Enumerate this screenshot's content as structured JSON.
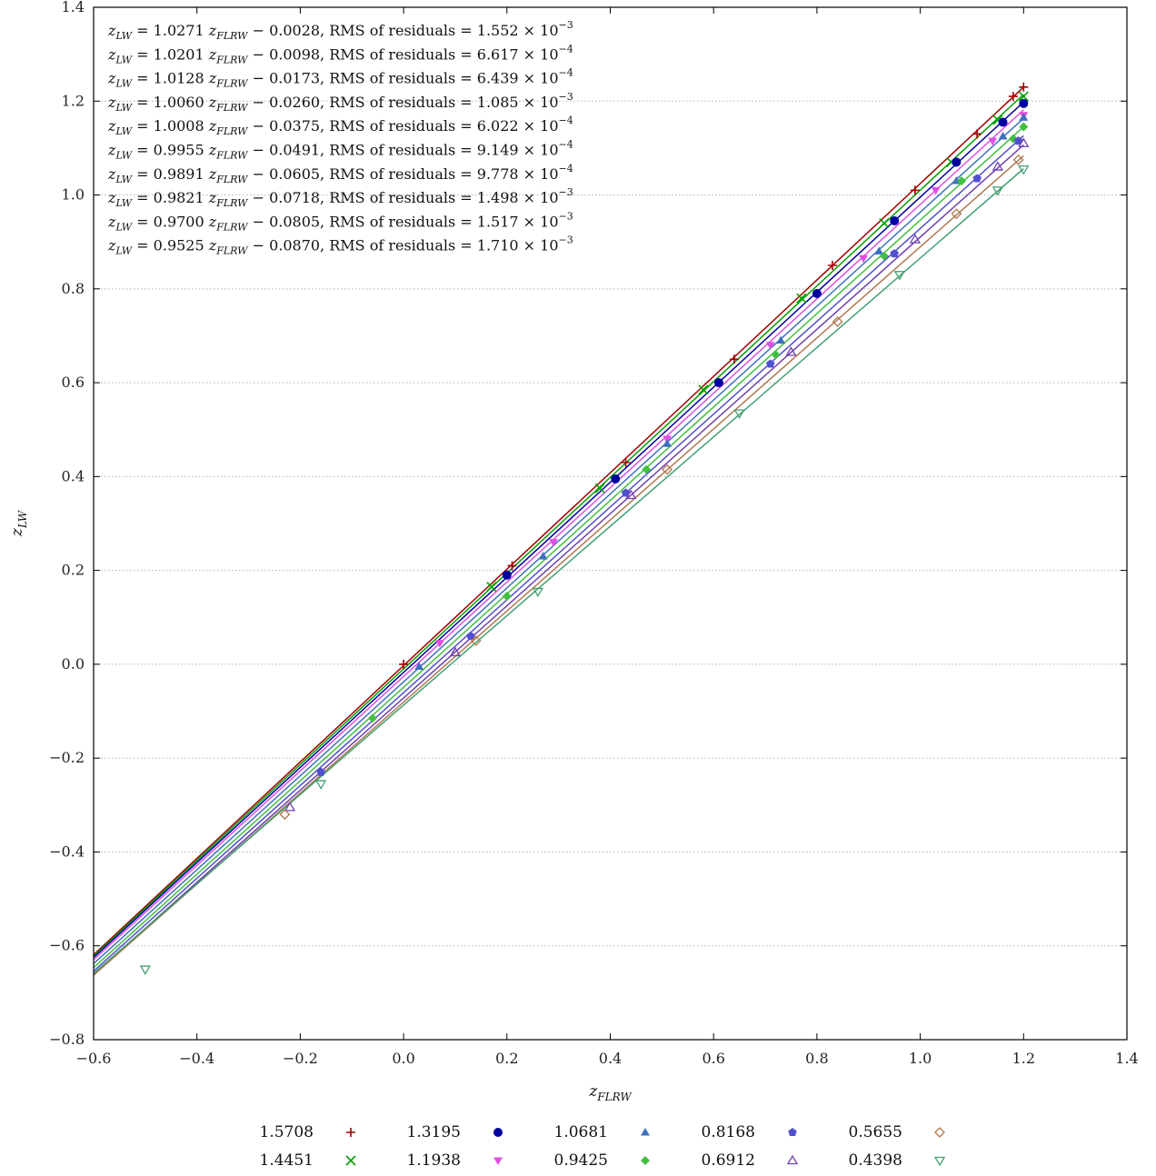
{
  "chart_data": {
    "type": "scatter",
    "xlabel": "z_FLRW",
    "ylabel": "z_LW",
    "xlim": [
      -0.6,
      1.4
    ],
    "ylim": [
      -0.8,
      1.4
    ],
    "xticks": [
      "−0.6",
      "−0.4",
      "−0.2",
      "0.0",
      "0.2",
      "0.4",
      "0.6",
      "0.8",
      "1.0",
      "1.2",
      "1.4"
    ],
    "yticks": [
      "−0.8",
      "−0.6",
      "−0.4",
      "−0.2",
      "0.0",
      "0.2",
      "0.4",
      "0.6",
      "0.8",
      "1.0",
      "1.2",
      "1.4"
    ],
    "xtick_values": [
      -0.6,
      -0.4,
      -0.2,
      0.0,
      0.2,
      0.4,
      0.6,
      0.8,
      1.0,
      1.2,
      1.4
    ],
    "ytick_values": [
      -0.8,
      -0.6,
      -0.4,
      -0.2,
      0.0,
      0.2,
      0.4,
      0.6,
      0.8,
      1.0,
      1.2,
      1.4
    ],
    "grid": "horizontal dotted",
    "legend_position": "bottom",
    "series": [
      {
        "name": "1.5708",
        "marker": "plus",
        "color": "#a00000",
        "slope": 1.0271,
        "intercept": -0.0028,
        "fit_text": "= 1.0271",
        "int_text": "− 0.0028,",
        "rms_text": "= 1.552 × 10",
        "rms_exp": "−3",
        "points": [
          [
            0.0,
            0.0
          ],
          [
            0.21,
            0.21
          ],
          [
            0.43,
            0.43
          ],
          [
            0.64,
            0.65
          ],
          [
            0.83,
            0.85
          ],
          [
            0.99,
            1.01
          ],
          [
            1.11,
            1.13
          ],
          [
            1.18,
            1.21
          ],
          [
            1.2,
            1.23
          ]
        ]
      },
      {
        "name": "1.4451",
        "marker": "cross",
        "color": "#00a000",
        "slope": 1.0201,
        "intercept": -0.0098,
        "fit_text": "= 1.0201",
        "int_text": "− 0.0098,",
        "rms_text": "= 6.617 × 10",
        "rms_exp": "−4",
        "points": [
          [
            0.17,
            0.165
          ],
          [
            0.38,
            0.375
          ],
          [
            0.58,
            0.585
          ],
          [
            0.77,
            0.78
          ],
          [
            0.93,
            0.94
          ],
          [
            1.06,
            1.07
          ],
          [
            1.15,
            1.16
          ],
          [
            1.2,
            1.21
          ]
        ]
      },
      {
        "name": "1.3195",
        "marker": "circle",
        "color": "#0000a0",
        "slope": 1.0128,
        "intercept": -0.0173,
        "fit_text": "= 1.0128",
        "int_text": "− 0.0173,",
        "rms_text": "= 6.439 × 10",
        "rms_exp": "−4",
        "points": [
          [
            0.2,
            0.19
          ],
          [
            0.41,
            0.395
          ],
          [
            0.61,
            0.6
          ],
          [
            0.8,
            0.79
          ],
          [
            0.95,
            0.945
          ],
          [
            1.07,
            1.07
          ],
          [
            1.16,
            1.155
          ],
          [
            1.2,
            1.195
          ]
        ]
      },
      {
        "name": "1.1938",
        "marker": "tri-down",
        "color": "#e050e0",
        "slope": 1.006,
        "intercept": -0.026,
        "fit_text": "= 1.0060",
        "int_text": "− 0.0260,",
        "rms_text": "= 1.085 × 10",
        "rms_exp": "−3",
        "points": [
          [
            0.07,
            0.045
          ],
          [
            0.29,
            0.26
          ],
          [
            0.51,
            0.48
          ],
          [
            0.71,
            0.68
          ],
          [
            0.89,
            0.865
          ],
          [
            1.03,
            1.01
          ],
          [
            1.14,
            1.115
          ],
          [
            1.2,
            1.17
          ]
        ]
      },
      {
        "name": "1.0681",
        "marker": "tri-up",
        "color": "#4070c0",
        "slope": 1.0008,
        "intercept": -0.0375,
        "fit_text": "= 1.0008",
        "int_text": "− 0.0375,",
        "rms_text": "= 6.022 × 10",
        "rms_exp": "−4",
        "points": [
          [
            0.03,
            -0.005
          ],
          [
            0.27,
            0.23
          ],
          [
            0.51,
            0.47
          ],
          [
            0.73,
            0.69
          ],
          [
            0.92,
            0.88
          ],
          [
            1.07,
            1.03
          ],
          [
            1.16,
            1.125
          ],
          [
            1.2,
            1.165
          ]
        ]
      },
      {
        "name": "0.9425",
        "marker": "diamond",
        "color": "#40c040",
        "slope": 0.9955,
        "intercept": -0.0491,
        "fit_text": "= 0.9955",
        "int_text": "− 0.0491,",
        "rms_text": "= 9.149 × 10",
        "rms_exp": "−4",
        "points": [
          [
            -0.06,
            -0.115
          ],
          [
            0.2,
            0.145
          ],
          [
            0.47,
            0.415
          ],
          [
            0.72,
            0.66
          ],
          [
            0.93,
            0.87
          ],
          [
            1.08,
            1.03
          ],
          [
            1.18,
            1.12
          ],
          [
            1.2,
            1.145
          ]
        ]
      },
      {
        "name": "0.8168",
        "marker": "pentagon",
        "color": "#5050d0",
        "slope": 0.9891,
        "intercept": -0.0605,
        "fit_text": "= 0.9891",
        "int_text": "− 0.0605,",
        "rms_text": "= 9.778 × 10",
        "rms_exp": "−4",
        "points": [
          [
            -0.16,
            -0.23
          ],
          [
            0.13,
            0.06
          ],
          [
            0.43,
            0.365
          ],
          [
            0.71,
            0.64
          ],
          [
            0.95,
            0.875
          ],
          [
            1.11,
            1.035
          ],
          [
            1.19,
            1.115
          ]
        ]
      },
      {
        "name": "0.6912",
        "marker": "open-tri-up",
        "color": "#7040b0",
        "slope": 0.9821,
        "intercept": -0.0718,
        "fit_text": "= 0.9821",
        "int_text": "− 0.0718,",
        "rms_text": "= 1.498 × 10",
        "rms_exp": "−3",
        "points": [
          [
            -0.22,
            -0.305
          ],
          [
            0.1,
            0.025
          ],
          [
            0.44,
            0.36
          ],
          [
            0.75,
            0.665
          ],
          [
            0.99,
            0.905
          ],
          [
            1.15,
            1.06
          ],
          [
            1.2,
            1.11
          ]
        ]
      },
      {
        "name": "0.5655",
        "marker": "open-diamond",
        "color": "#b07850",
        "slope": 0.97,
        "intercept": -0.0805,
        "fit_text": "= 0.9700",
        "int_text": "− 0.0805,",
        "rms_text": "= 1.517 × 10",
        "rms_exp": "−3",
        "points": [
          [
            -0.23,
            -0.32
          ],
          [
            0.14,
            0.05
          ],
          [
            0.51,
            0.415
          ],
          [
            0.84,
            0.73
          ],
          [
            1.07,
            0.96
          ],
          [
            1.19,
            1.075
          ]
        ]
      },
      {
        "name": "0.4398",
        "marker": "open-tri-down",
        "color": "#40a070",
        "slope": 0.9525,
        "intercept": -0.087,
        "fit_text": "= 0.9525",
        "int_text": "− 0.0870,",
        "rms_text": "= 1.710 × 10",
        "rms_exp": "−3",
        "points": [
          [
            -0.5,
            -0.65
          ],
          [
            -0.16,
            -0.255
          ],
          [
            0.26,
            0.155
          ],
          [
            0.65,
            0.535
          ],
          [
            0.96,
            0.83
          ],
          [
            1.15,
            1.01
          ],
          [
            1.2,
            1.055
          ]
        ]
      }
    ]
  }
}
